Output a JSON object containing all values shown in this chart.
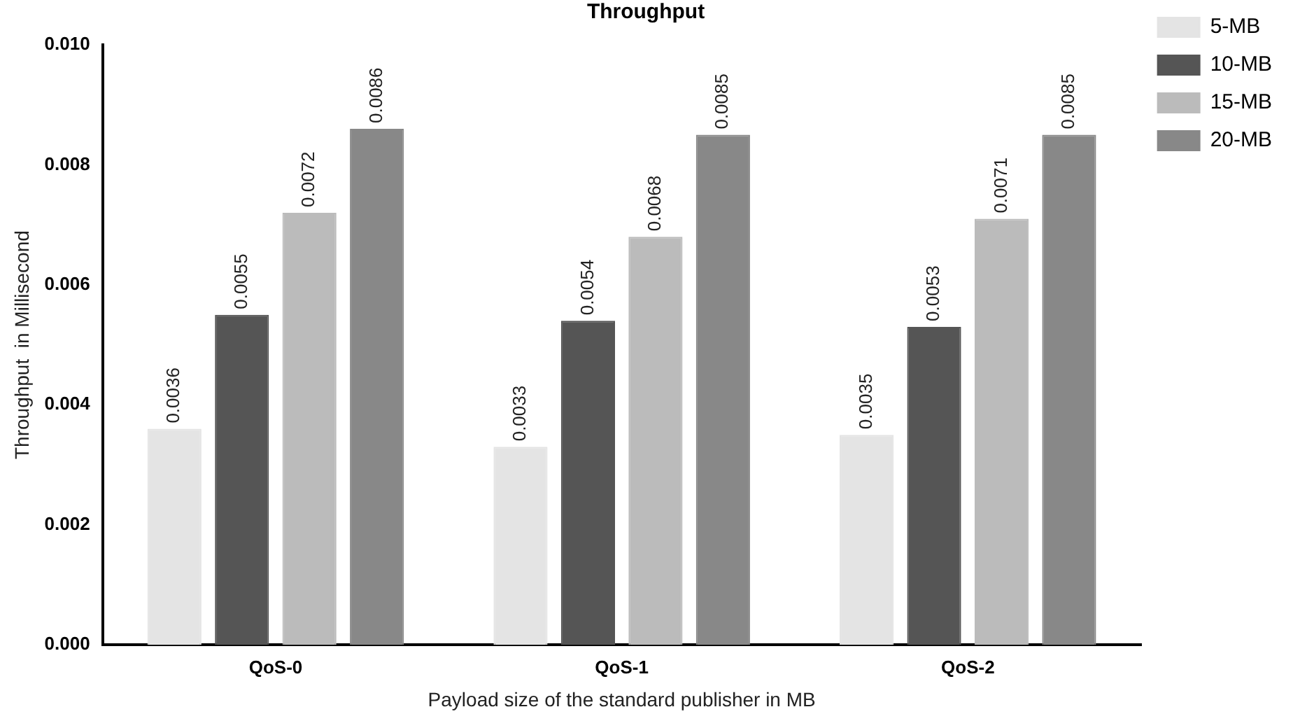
{
  "chart_data": {
    "type": "bar",
    "title": "Throughput",
    "xlabel": "Payload size of the standard publisher in MB",
    "ylabel": "Throughput  in Millisecond",
    "categories": [
      "QoS-0",
      "QoS-1",
      "QoS-2"
    ],
    "series": [
      {
        "name": "5-MB",
        "color": "#e4e4e4",
        "values": [
          0.0036,
          0.0033,
          0.0035
        ]
      },
      {
        "name": "10-MB",
        "color": "#555555",
        "values": [
          0.0055,
          0.0054,
          0.0053
        ]
      },
      {
        "name": "15-MB",
        "color": "#bbbbbb",
        "values": [
          0.0072,
          0.0068,
          0.0071
        ]
      },
      {
        "name": "20-MB",
        "color": "#888888",
        "values": [
          0.0086,
          0.0085,
          0.0085
        ]
      }
    ],
    "ylim": [
      0,
      0.01
    ],
    "yticks": [
      {
        "value": 0,
        "label": "0.000"
      },
      {
        "value": 0.002,
        "label": "0.002"
      },
      {
        "value": 0.004,
        "label": "0.004"
      },
      {
        "value": 0.006,
        "label": "0.006"
      },
      {
        "value": 0.008,
        "label": "0.008"
      },
      {
        "value": 0.01,
        "label": "0.010"
      }
    ],
    "grid": false,
    "legend": "top right",
    "data_labels": true
  }
}
